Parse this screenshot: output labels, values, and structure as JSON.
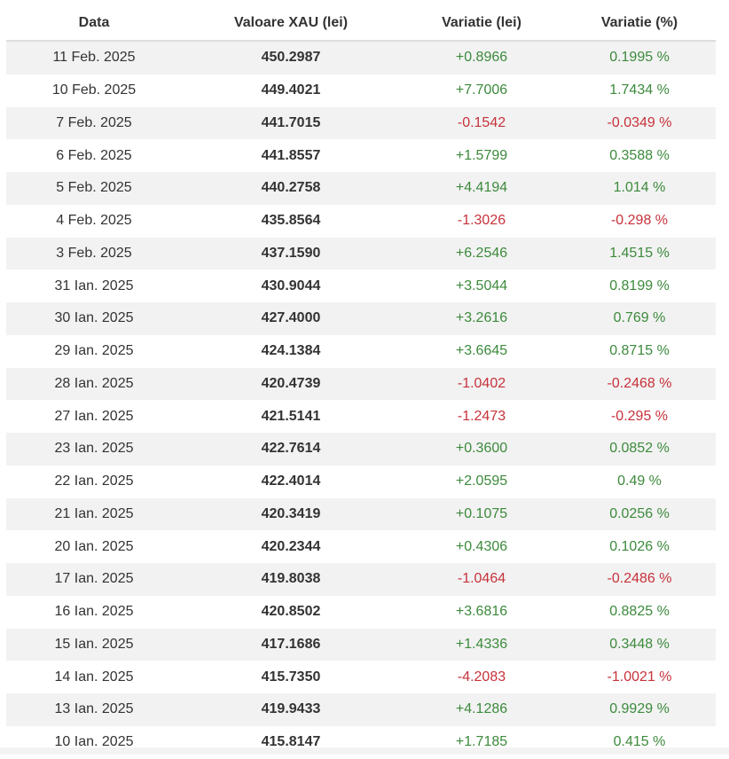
{
  "table": {
    "headers": {
      "date": "Data",
      "value": "Valoare XAU (lei)",
      "change_lei": "Variatie (lei)",
      "change_pct": "Variatie (%)"
    },
    "rows": [
      {
        "date": "11 Feb. 2025",
        "value": "450.2987",
        "change_lei": "+0.8966",
        "change_pct": "0.1995 %",
        "trend": "pos"
      },
      {
        "date": "10 Feb. 2025",
        "value": "449.4021",
        "change_lei": "+7.7006",
        "change_pct": "1.7434 %",
        "trend": "pos"
      },
      {
        "date": "7 Feb. 2025",
        "value": "441.7015",
        "change_lei": "-0.1542",
        "change_pct": "-0.0349 %",
        "trend": "neg"
      },
      {
        "date": "6 Feb. 2025",
        "value": "441.8557",
        "change_lei": "+1.5799",
        "change_pct": "0.3588 %",
        "trend": "pos"
      },
      {
        "date": "5 Feb. 2025",
        "value": "440.2758",
        "change_lei": "+4.4194",
        "change_pct": "1.014 %",
        "trend": "pos"
      },
      {
        "date": "4 Feb. 2025",
        "value": "435.8564",
        "change_lei": "-1.3026",
        "change_pct": "-0.298 %",
        "trend": "neg"
      },
      {
        "date": "3 Feb. 2025",
        "value": "437.1590",
        "change_lei": "+6.2546",
        "change_pct": "1.4515 %",
        "trend": "pos"
      },
      {
        "date": "31 Ian. 2025",
        "value": "430.9044",
        "change_lei": "+3.5044",
        "change_pct": "0.8199 %",
        "trend": "pos"
      },
      {
        "date": "30 Ian. 2025",
        "value": "427.4000",
        "change_lei": "+3.2616",
        "change_pct": "0.769 %",
        "trend": "pos"
      },
      {
        "date": "29 Ian. 2025",
        "value": "424.1384",
        "change_lei": "+3.6645",
        "change_pct": "0.8715 %",
        "trend": "pos"
      },
      {
        "date": "28 Ian. 2025",
        "value": "420.4739",
        "change_lei": "-1.0402",
        "change_pct": "-0.2468 %",
        "trend": "neg"
      },
      {
        "date": "27 Ian. 2025",
        "value": "421.5141",
        "change_lei": "-1.2473",
        "change_pct": "-0.295 %",
        "trend": "neg"
      },
      {
        "date": "23 Ian. 2025",
        "value": "422.7614",
        "change_lei": "+0.3600",
        "change_pct": "0.0852 %",
        "trend": "pos"
      },
      {
        "date": "22 Ian. 2025",
        "value": "422.4014",
        "change_lei": "+2.0595",
        "change_pct": "0.49 %",
        "trend": "pos"
      },
      {
        "date": "21 Ian. 2025",
        "value": "420.3419",
        "change_lei": "+0.1075",
        "change_pct": "0.0256 %",
        "trend": "pos"
      },
      {
        "date": "20 Ian. 2025",
        "value": "420.2344",
        "change_lei": "+0.4306",
        "change_pct": "0.1026 %",
        "trend": "pos"
      },
      {
        "date": "17 Ian. 2025",
        "value": "419.8038",
        "change_lei": "-1.0464",
        "change_pct": "-0.2486 %",
        "trend": "neg"
      },
      {
        "date": "16 Ian. 2025",
        "value": "420.8502",
        "change_lei": "+3.6816",
        "change_pct": "0.8825 %",
        "trend": "pos"
      },
      {
        "date": "15 Ian. 2025",
        "value": "417.1686",
        "change_lei": "+1.4336",
        "change_pct": "0.3448 %",
        "trend": "pos"
      },
      {
        "date": "14 Ian. 2025",
        "value": "415.7350",
        "change_lei": "-4.2083",
        "change_pct": "-1.0021 %",
        "trend": "neg"
      },
      {
        "date": "13 Ian. 2025",
        "value": "419.9433",
        "change_lei": "+4.1286",
        "change_pct": "0.9929 %",
        "trend": "pos"
      },
      {
        "date": "10 Ian. 2025",
        "value": "415.8147",
        "change_lei": "+1.7185",
        "change_pct": "0.415 %",
        "trend": "pos"
      }
    ]
  },
  "colors": {
    "positive": "#3c8a3c",
    "negative": "#c7323b",
    "stripe": "#f2f2f2",
    "header_border": "#dddddd"
  }
}
